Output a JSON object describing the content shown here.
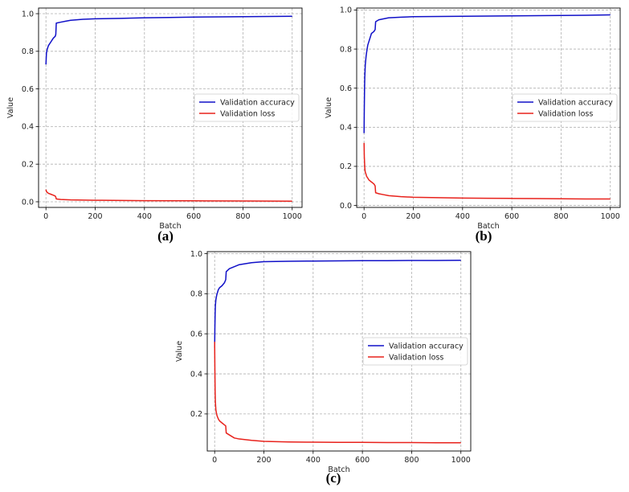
{
  "colors": {
    "accuracy": "#1010c8",
    "loss": "#e8221c",
    "grid": "#b0b0b0"
  },
  "chart_data": [
    {
      "panel": "(a)",
      "type": "line",
      "xlabel": "Batch",
      "ylabel": "Value",
      "xlim": [
        -30,
        1040
      ],
      "ylim": [
        -0.03,
        1.03
      ],
      "xticks": [
        0,
        200,
        400,
        600,
        800,
        1000
      ],
      "yticks": [
        0.0,
        0.2,
        0.4,
        0.6,
        0.8,
        1.0
      ],
      "ytick_labels": [
        "0.0",
        "0.2",
        "0.4",
        "0.6",
        "0.8",
        "1.0"
      ],
      "grid": true,
      "legend_position": "right-center",
      "series": [
        {
          "name": "Validation accuracy",
          "color": "#1010c8",
          "x": [
            0,
            2,
            5,
            10,
            15,
            20,
            30,
            38,
            40,
            42,
            60,
            80,
            100,
            150,
            200,
            300,
            400,
            500,
            600,
            700,
            800,
            900,
            1000
          ],
          "y": [
            0.73,
            0.79,
            0.81,
            0.83,
            0.84,
            0.85,
            0.87,
            0.88,
            0.89,
            0.95,
            0.955,
            0.96,
            0.965,
            0.97,
            0.973,
            0.975,
            0.978,
            0.98,
            0.982,
            0.983,
            0.984,
            0.985,
            0.986
          ]
        },
        {
          "name": "Validation loss",
          "color": "#e8221c",
          "x": [
            0,
            2,
            5,
            10,
            20,
            30,
            38,
            40,
            42,
            60,
            100,
            200,
            400,
            600,
            800,
            1000
          ],
          "y": [
            0.065,
            0.055,
            0.05,
            0.045,
            0.04,
            0.035,
            0.03,
            0.025,
            0.015,
            0.012,
            0.01,
            0.008,
            0.006,
            0.005,
            0.004,
            0.003
          ]
        }
      ]
    },
    {
      "panel": "(b)",
      "type": "line",
      "xlabel": "Batch",
      "ylabel": "Value",
      "xlim": [
        -30,
        1040
      ],
      "ylim": [
        -0.01,
        1.01
      ],
      "xticks": [
        0,
        200,
        400,
        600,
        800,
        1000
      ],
      "yticks": [
        0.0,
        0.2,
        0.4,
        0.6,
        0.8,
        1.0
      ],
      "ytick_labels": [
        "0.0",
        "0.2",
        "0.4",
        "0.6",
        "0.8",
        "1.0"
      ],
      "grid": true,
      "legend_position": "right-center",
      "series": [
        {
          "name": "Validation accuracy",
          "color": "#1010c8",
          "x": [
            0,
            1,
            2,
            3,
            5,
            8,
            10,
            15,
            20,
            25,
            30,
            40,
            45,
            47,
            60,
            80,
            100,
            150,
            200,
            300,
            400,
            500,
            600,
            700,
            800,
            900,
            1000
          ],
          "y": [
            0.37,
            0.5,
            0.6,
            0.66,
            0.72,
            0.76,
            0.78,
            0.82,
            0.84,
            0.86,
            0.88,
            0.89,
            0.9,
            0.94,
            0.95,
            0.955,
            0.96,
            0.963,
            0.966,
            0.967,
            0.968,
            0.969,
            0.97,
            0.971,
            0.972,
            0.973,
            0.975
          ]
        },
        {
          "name": "Validation loss",
          "color": "#e8221c",
          "x": [
            0,
            1,
            2,
            3,
            5,
            8,
            10,
            15,
            20,
            30,
            40,
            45,
            47,
            60,
            80,
            100,
            150,
            200,
            300,
            400,
            500,
            600,
            700,
            800,
            900,
            1000
          ],
          "y": [
            0.32,
            0.25,
            0.22,
            0.19,
            0.17,
            0.16,
            0.15,
            0.14,
            0.13,
            0.12,
            0.11,
            0.1,
            0.065,
            0.06,
            0.055,
            0.05,
            0.045,
            0.042,
            0.04,
            0.038,
            0.037,
            0.036,
            0.035,
            0.034,
            0.033,
            0.033
          ]
        }
      ]
    },
    {
      "panel": "(c)",
      "type": "line",
      "xlabel": "Batch",
      "ylabel": "Value",
      "xlim": [
        -30,
        1040
      ],
      "ylim": [
        0.015,
        1.01
      ],
      "xticks": [
        0,
        200,
        400,
        600,
        800,
        1000
      ],
      "yticks": [
        0.2,
        0.4,
        0.6,
        0.8,
        1.0
      ],
      "ytick_labels": [
        "0.2",
        "0.4",
        "0.6",
        "0.8",
        "1.0"
      ],
      "grid": true,
      "legend_position": "right-center",
      "series": [
        {
          "name": "Validation accuracy",
          "color": "#1010c8",
          "x": [
            0,
            1,
            2,
            3,
            5,
            8,
            10,
            15,
            20,
            30,
            40,
            45,
            47,
            60,
            80,
            100,
            150,
            200,
            300,
            400,
            500,
            600,
            700,
            800,
            900,
            1000
          ],
          "y": [
            0.53,
            0.63,
            0.7,
            0.74,
            0.77,
            0.79,
            0.8,
            0.82,
            0.83,
            0.84,
            0.855,
            0.87,
            0.91,
            0.925,
            0.935,
            0.945,
            0.955,
            0.96,
            0.962,
            0.963,
            0.964,
            0.965,
            0.965,
            0.966,
            0.966,
            0.967
          ]
        },
        {
          "name": "Validation loss",
          "color": "#e8221c",
          "x": [
            0,
            1,
            2,
            3,
            5,
            8,
            10,
            15,
            20,
            30,
            40,
            45,
            47,
            60,
            80,
            100,
            150,
            200,
            300,
            400,
            500,
            600,
            700,
            800,
            900,
            1000
          ],
          "y": [
            0.56,
            0.42,
            0.31,
            0.26,
            0.22,
            0.2,
            0.19,
            0.175,
            0.165,
            0.155,
            0.145,
            0.14,
            0.105,
            0.095,
            0.08,
            0.075,
            0.068,
            0.063,
            0.06,
            0.059,
            0.058,
            0.058,
            0.057,
            0.057,
            0.056,
            0.056
          ]
        }
      ]
    }
  ]
}
